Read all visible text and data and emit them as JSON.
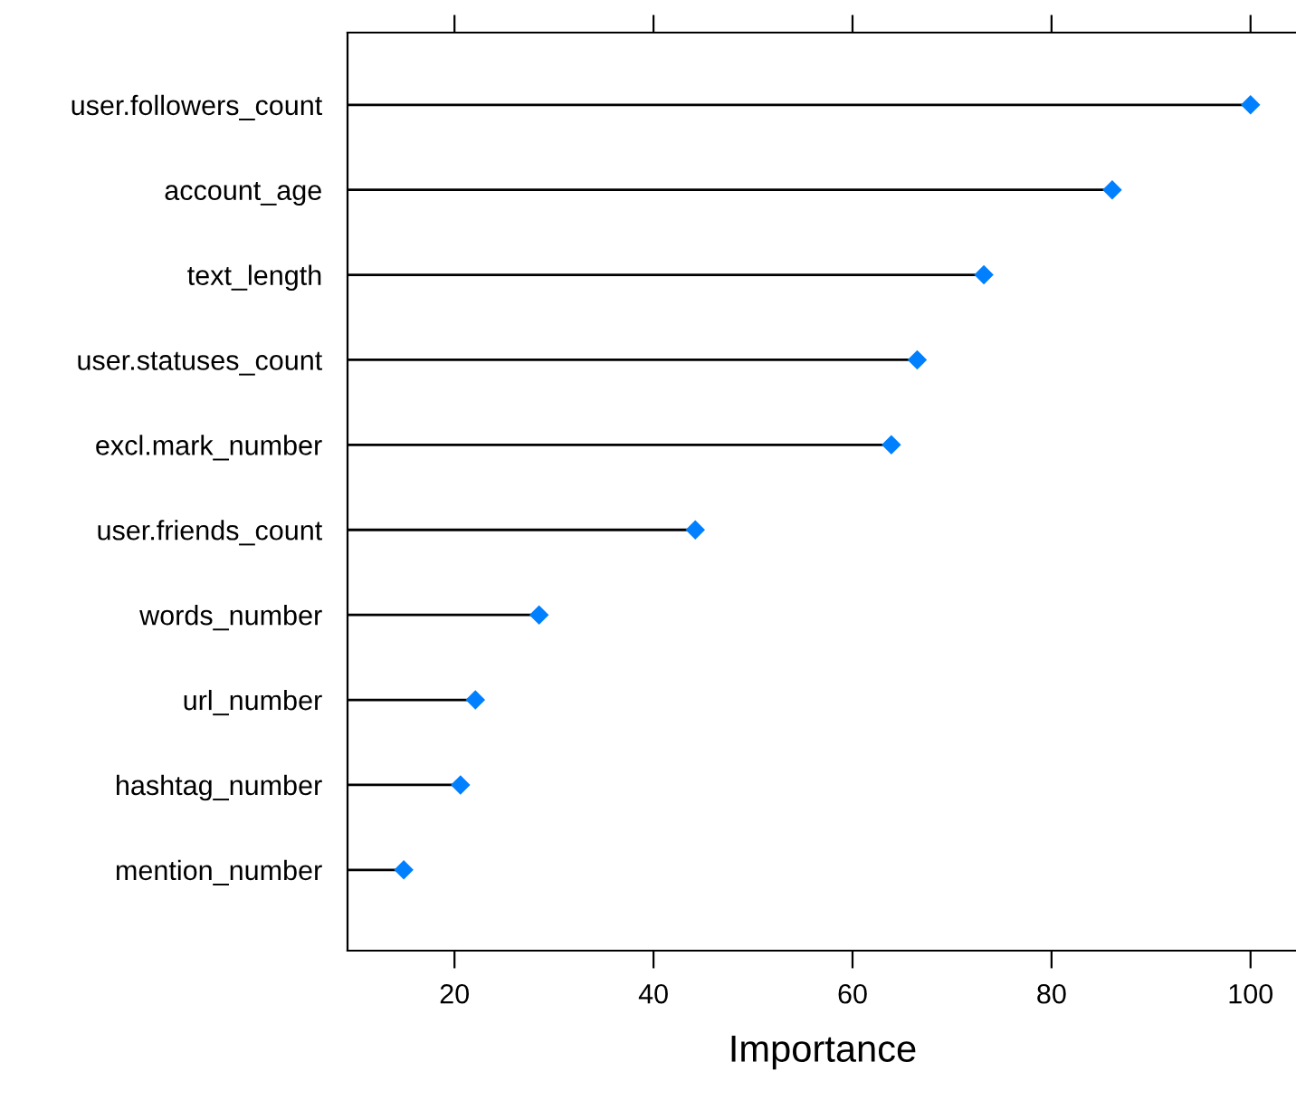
{
  "chart_data": {
    "type": "lollipop",
    "orientation": "horizontal",
    "xlabel": "Importance",
    "categories": [
      "user.followers_count",
      "account_age",
      "text_length",
      "user.statuses_count",
      "excl.mark_number",
      "user.friends_count",
      "words_number",
      "url_number",
      "hashtag_number",
      "mention_number"
    ],
    "values": [
      100,
      86.1,
      73.2,
      66.5,
      63.9,
      44.2,
      28.5,
      22.1,
      20.6,
      14.9
    ],
    "color": "#0080ff",
    "marker": "diamond",
    "xlim": [
      9.25,
      104.75
    ],
    "xticks": [
      20,
      40,
      60,
      80,
      100
    ],
    "legend": false
  }
}
